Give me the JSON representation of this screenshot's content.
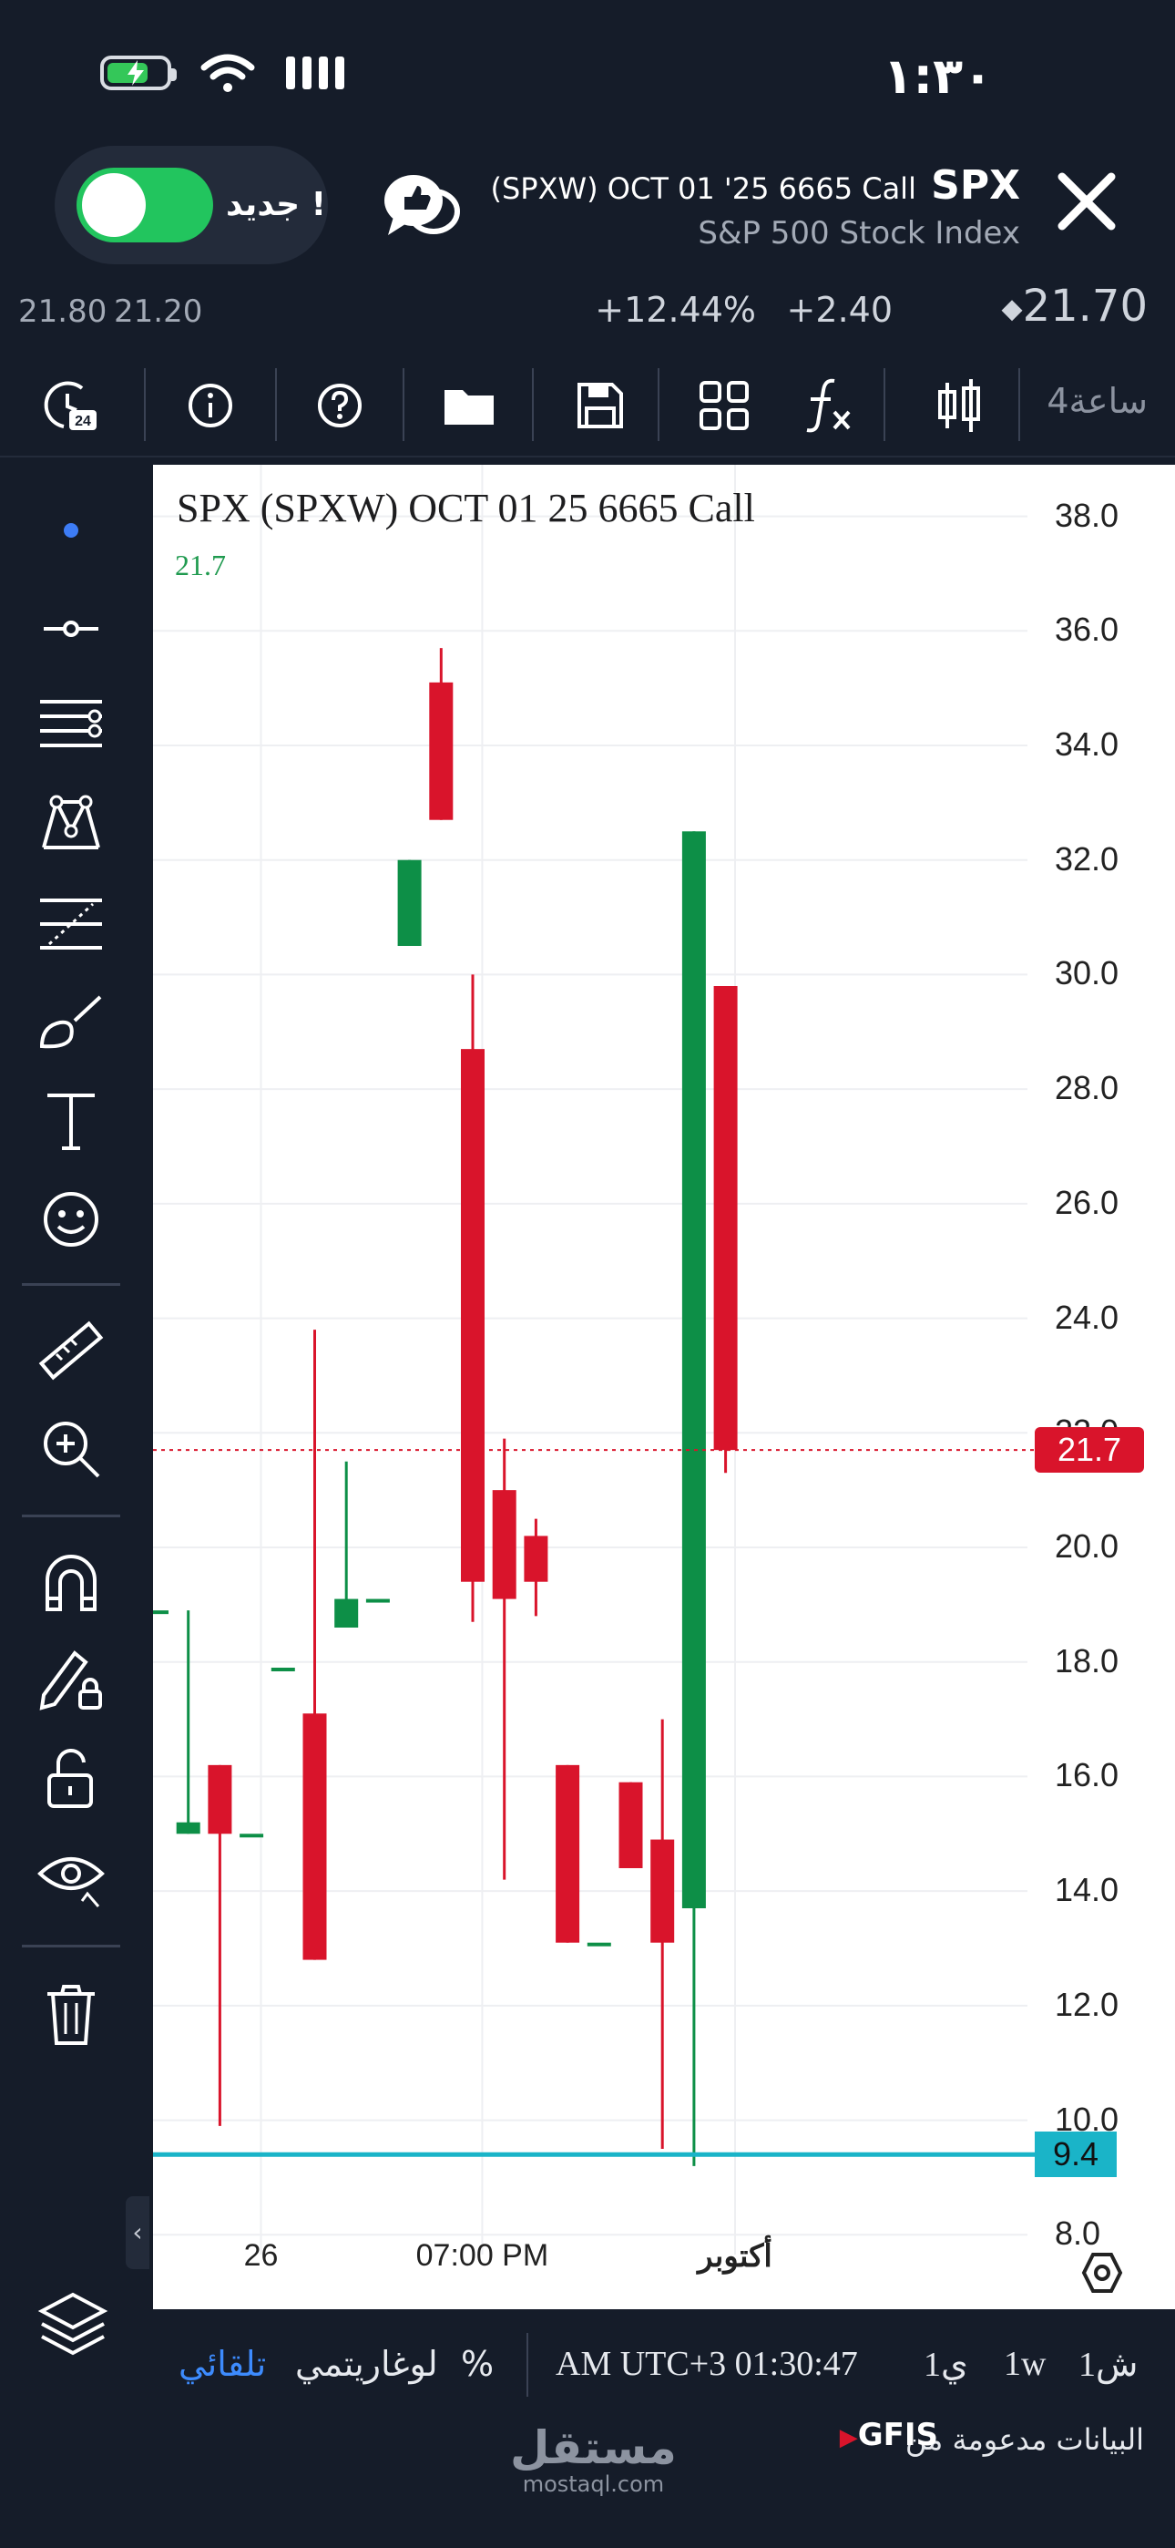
{
  "status_bar": {
    "time": "١:٣٠"
  },
  "header": {
    "contract": "(SPXW) OCT 01 '25 6665 Call",
    "symbol": "SPX",
    "subtitle": "S&P 500 Stock Index",
    "toggle_label": "جديد !",
    "toggle_on": true
  },
  "quote": {
    "last": "21.70",
    "change": "+2.40",
    "change_pct": "+12.44%",
    "ask": "21.80",
    "bid": "21.20"
  },
  "toolbar": {
    "interval_label": "4ساعة",
    "icons": [
      "candles-icon",
      "function-icon",
      "layout-grid-icon",
      "save-icon",
      "folder-icon",
      "help-icon",
      "info-icon",
      "clock-24-icon"
    ]
  },
  "left_tools": [
    "dot-icon",
    "horizontal-line-icon",
    "parallel-lines-icon",
    "pattern-icon",
    "fib-icon",
    "brush-icon",
    "text-icon",
    "emoji-icon",
    "ruler-icon",
    "zoom-icon",
    "magnet-icon",
    "lock-pencil-icon",
    "unlock-icon",
    "eye-icon",
    "trash-icon",
    "layers-icon"
  ],
  "chart_data": {
    "type": "candlestick",
    "title": "SPX (SPXW) OCT 01 25 6665 Call",
    "last_label": "21.7",
    "ylim": [
      6.7,
      38.9
    ],
    "yticks": [
      "38.0",
      "36.0",
      "34.0",
      "32.0",
      "30.0",
      "28.0",
      "26.0",
      "24.0",
      "22.0",
      "20.0",
      "18.0",
      "16.0",
      "14.0",
      "12.0",
      "10.0",
      "8.0"
    ],
    "xticks": [
      {
        "label": "26",
        "at": 3.3
      },
      {
        "label": "07:00 PM",
        "at": 10.3
      },
      {
        "label": "أكتوبر",
        "at": 18.3
      }
    ],
    "current_price": {
      "value": 21.7,
      "label": "21.7",
      "color": "#d9142b"
    },
    "horizontal_line": {
      "value": 9.4,
      "label": "9.4",
      "color": "#1ab4c8"
    },
    "up_color": "#0d8f47",
    "down_color": "#d9142b",
    "candles": [
      {
        "o": 18.9,
        "h": 18.9,
        "l": 18.9,
        "c": 18.9
      },
      {
        "o": 15.0,
        "h": 18.9,
        "l": 15.0,
        "c": 15.2
      },
      {
        "o": 16.2,
        "h": 16.2,
        "l": 9.9,
        "c": 15.0
      },
      {
        "o": 15.0,
        "h": 15.0,
        "l": 15.0,
        "c": 15.0
      },
      {
        "o": 17.9,
        "h": 17.9,
        "l": 17.9,
        "c": 17.9
      },
      {
        "o": 17.1,
        "h": 23.8,
        "l": 12.8,
        "c": 12.8
      },
      {
        "o": 18.6,
        "h": 21.5,
        "l": 18.6,
        "c": 19.1
      },
      {
        "o": 19.1,
        "h": 19.1,
        "l": 19.1,
        "c": 19.1
      },
      {
        "o": 30.5,
        "h": 32.0,
        "l": 30.5,
        "c": 32.0
      },
      {
        "o": 35.1,
        "h": 35.7,
        "l": 32.7,
        "c": 32.7
      },
      {
        "o": 28.7,
        "h": 30.0,
        "l": 18.7,
        "c": 19.4
      },
      {
        "o": 21.0,
        "h": 21.9,
        "l": 14.2,
        "c": 19.1
      },
      {
        "o": 20.2,
        "h": 20.5,
        "l": 18.8,
        "c": 19.4
      },
      {
        "o": 16.2,
        "h": 16.2,
        "l": 13.1,
        "c": 13.1
      },
      {
        "o": 13.1,
        "h": 13.1,
        "l": 13.1,
        "c": 13.1
      },
      {
        "o": 15.9,
        "h": 15.9,
        "l": 14.4,
        "c": 14.4
      },
      {
        "o": 14.9,
        "h": 17.0,
        "l": 9.5,
        "c": 13.1
      },
      {
        "o": 13.7,
        "h": 32.5,
        "l": 9.2,
        "c": 32.5
      },
      {
        "o": 29.8,
        "h": 29.8,
        "l": 21.3,
        "c": 21.7
      }
    ]
  },
  "bottom_bar": {
    "auto": "تلقائي",
    "log": "لوغاريتمي",
    "percent": "%",
    "time": "AM UTC+3 01:30:47",
    "range_1y": "1ي",
    "range_1w": "1w",
    "range_1m": "1ش"
  },
  "footer": {
    "credit": "البيانات مدعومة من",
    "brand": "GFIS",
    "watermark_ar": "مستقل",
    "watermark_en": "mostaql.com"
  }
}
